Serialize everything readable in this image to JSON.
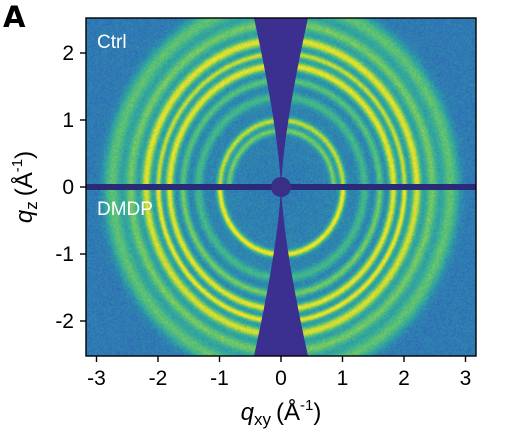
{
  "panel_label": "A",
  "chart_data": {
    "type": "heatmap",
    "subtype": "2D GIWAXS scattering pattern",
    "xlabel": {
      "symbol": "q",
      "subscript": "xy",
      "unit": "(Å",
      "unit_exp": "-1",
      "close": ")"
    },
    "ylabel": {
      "symbol": "q",
      "subscript": "z",
      "unit": "(Å",
      "unit_exp": "-1",
      "close": ")"
    },
    "xlim": [
      -3.2,
      3.2
    ],
    "ylim": [
      -2.5,
      2.5
    ],
    "xticks": [
      -3,
      -2,
      -1,
      0,
      1,
      2,
      3
    ],
    "xtick_labels": [
      "-3",
      "-2",
      "-1",
      "0",
      "1",
      "2",
      "3"
    ],
    "yticks": [
      2,
      1,
      0,
      -1,
      -2
    ],
    "ytick_labels": [
      "2",
      "1",
      "0",
      "-1",
      "-2"
    ],
    "regions": [
      {
        "name": "Ctrl",
        "position": "top half"
      },
      {
        "name": "DMDP",
        "position": "bottom half"
      }
    ],
    "rings_ctrl": [
      {
        "q": 0.85,
        "intensity": 0.55,
        "width": 0.05
      },
      {
        "q": 1.0,
        "intensity": 0.75,
        "width": 0.05
      },
      {
        "q": 1.35,
        "intensity": 0.35,
        "width": 0.07
      },
      {
        "q": 1.6,
        "intensity": 0.45,
        "width": 0.06
      },
      {
        "q": 1.82,
        "intensity": 0.9,
        "width": 0.07
      },
      {
        "q": 2.0,
        "intensity": 0.8,
        "width": 0.05
      },
      {
        "q": 2.2,
        "intensity": 0.9,
        "width": 0.08
      },
      {
        "q": 2.45,
        "intensity": 0.55,
        "width": 0.1
      },
      {
        "q": 2.75,
        "intensity": 0.5,
        "width": 0.14
      }
    ],
    "rings_dmdp": [
      {
        "q": 1.0,
        "intensity": 0.95,
        "width": 0.05
      },
      {
        "q": 1.35,
        "intensity": 0.35,
        "width": 0.07
      },
      {
        "q": 1.6,
        "intensity": 0.55,
        "width": 0.06
      },
      {
        "q": 1.82,
        "intensity": 0.9,
        "width": 0.06
      },
      {
        "q": 2.0,
        "intensity": 0.95,
        "width": 0.05
      },
      {
        "q": 2.2,
        "intensity": 0.85,
        "width": 0.08
      },
      {
        "q": 2.45,
        "intensity": 0.55,
        "width": 0.1
      },
      {
        "q": 2.75,
        "intensity": 0.5,
        "width": 0.14
      }
    ],
    "colormap": [
      "#440f5d",
      "#3b3fa3",
      "#2f6fb8",
      "#2ea2a3",
      "#53bf7a",
      "#b8d63a",
      "#fbe72a"
    ],
    "background_color": "#3a5fb8",
    "mask_color": "#3b2f8f"
  }
}
